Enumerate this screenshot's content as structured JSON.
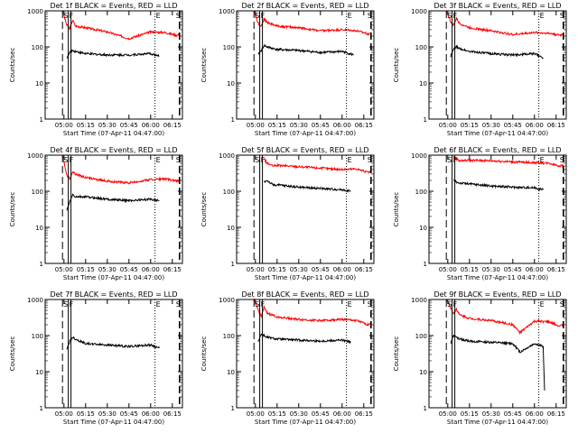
{
  "figure": {
    "panels": [
      {
        "title": "Det 1f BLACK = Events, RED = LLD"
      },
      {
        "title": "Det 2f BLACK = Events, RED = LLD"
      },
      {
        "title": "Det 3f BLACK = Events, RED = LLD"
      },
      {
        "title": "Det 4f BLACK = Events, RED = LLD"
      },
      {
        "title": "Det 5f BLACK = Events, RED = LLD"
      },
      {
        "title": "Det 6f BLACK = Events, RED = LLD"
      },
      {
        "title": "Det 7f BLACK = Events, RED = LLD"
      },
      {
        "title": "Det 8f BLACK = Events, RED = LLD"
      },
      {
        "title": "Det 9f BLACK = Events, RED = LLD"
      }
    ],
    "ylabel": "Counts/sec",
    "xlabel": "Start Time (07-Apr-11 04:47:00)",
    "xticks": [
      "05:00",
      "05:15",
      "05:30",
      "05:45",
      "06:00",
      "06:15"
    ],
    "yticks": [
      "1",
      "10",
      "100",
      "1000"
    ],
    "marker_labels": [
      "S",
      "F",
      "E",
      "S"
    ]
  },
  "chart_data": [
    {
      "type": "line",
      "title": "Det 1f BLACK = Events, RED = LLD",
      "xlabel": "Start Time (07-Apr-11 04:47:00)",
      "ylabel": "Counts/sec",
      "yscale": "log",
      "ylim": [
        1,
        1000
      ],
      "series": [
        {
          "name": "LLD",
          "color": "#ff0000",
          "x": [
            "04:59",
            "05:02",
            "05:04",
            "05:06",
            "05:08",
            "05:15",
            "05:30",
            "05:45",
            "06:00",
            "06:10",
            "06:18",
            "06:20"
          ],
          "values": [
            1000,
            400,
            320,
            550,
            380,
            340,
            260,
            170,
            260,
            250,
            210,
            220
          ]
        },
        {
          "name": "Events",
          "color": "#000000",
          "x": [
            "05:02",
            "05:04",
            "05:06",
            "05:08",
            "05:15",
            "05:30",
            "05:45",
            "06:00",
            "06:06"
          ],
          "values": [
            50,
            70,
            80,
            75,
            65,
            60,
            60,
            65,
            55
          ]
        }
      ]
    },
    {
      "type": "line",
      "title": "Det 2f BLACK = Events, RED = LLD",
      "xlabel": "Start Time (07-Apr-11 04:47:00)",
      "ylabel": "Counts/sec",
      "yscale": "log",
      "ylim": [
        1,
        1000
      ],
      "series": [
        {
          "name": "LLD",
          "color": "#ff0000",
          "x": [
            "04:59",
            "05:02",
            "05:04",
            "05:06",
            "05:08",
            "05:15",
            "05:30",
            "05:45",
            "06:00",
            "06:10",
            "06:18",
            "06:20"
          ],
          "values": [
            1000,
            450,
            380,
            600,
            480,
            380,
            340,
            280,
            300,
            280,
            230,
            240
          ]
        },
        {
          "name": "Events",
          "color": "#000000",
          "x": [
            "05:02",
            "05:04",
            "05:06",
            "05:08",
            "05:15",
            "05:30",
            "05:45",
            "06:00",
            "06:08"
          ],
          "values": [
            60,
            80,
            110,
            100,
            85,
            80,
            70,
            75,
            60
          ]
        }
      ]
    },
    {
      "type": "line",
      "title": "Det 3f BLACK = Events, RED = LLD",
      "xlabel": "Start Time (07-Apr-11 04:47:00)",
      "ylabel": "Counts/sec",
      "yscale": "log",
      "ylim": [
        1,
        1000
      ],
      "series": [
        {
          "name": "LLD",
          "color": "#ff0000",
          "x": [
            "04:59",
            "05:02",
            "05:04",
            "05:06",
            "05:08",
            "05:15",
            "05:30",
            "05:45",
            "06:00",
            "06:10",
            "06:18",
            "06:20"
          ],
          "values": [
            1000,
            500,
            400,
            620,
            450,
            340,
            280,
            220,
            250,
            240,
            210,
            230
          ]
        },
        {
          "name": "Events",
          "color": "#000000",
          "x": [
            "05:02",
            "05:04",
            "05:06",
            "05:08",
            "05:15",
            "05:30",
            "05:45",
            "06:00",
            "06:06"
          ],
          "values": [
            55,
            85,
            100,
            90,
            75,
            65,
            60,
            65,
            50
          ]
        }
      ]
    },
    {
      "type": "line",
      "title": "Det 4f BLACK = Events, RED = LLD",
      "xlabel": "Start Time (07-Apr-11 04:47:00)",
      "ylabel": "Counts/sec",
      "yscale": "log",
      "ylim": [
        1,
        1000
      ],
      "series": [
        {
          "name": "LLD",
          "color": "#ff0000",
          "x": [
            "04:59",
            "05:02",
            "05:04",
            "05:06",
            "05:08",
            "05:15",
            "05:30",
            "05:45",
            "06:00",
            "06:10",
            "06:18",
            "06:20"
          ],
          "values": [
            1000,
            280,
            220,
            350,
            300,
            240,
            190,
            170,
            210,
            220,
            190,
            200
          ]
        },
        {
          "name": "Events",
          "color": "#000000",
          "x": [
            "05:02",
            "05:04",
            "05:06",
            "05:08",
            "05:15",
            "05:30",
            "05:45",
            "06:00",
            "06:06"
          ],
          "values": [
            30,
            50,
            80,
            70,
            70,
            60,
            55,
            60,
            55
          ]
        }
      ]
    },
    {
      "type": "line",
      "title": "Det 5f BLACK = Events, RED = LLD",
      "xlabel": "Start Time (07-Apr-11 04:47:00)",
      "ylabel": "Counts/sec",
      "yscale": "log",
      "ylim": [
        1,
        1000
      ],
      "series": [
        {
          "name": "LLD",
          "color": "#ff0000",
          "x": [
            "05:06",
            "05:08",
            "05:12",
            "05:15",
            "05:30",
            "05:45",
            "06:00",
            "06:10",
            "06:18",
            "06:20"
          ],
          "values": [
            800,
            600,
            500,
            520,
            480,
            440,
            400,
            420,
            330,
            350
          ]
        },
        {
          "name": "Events",
          "color": "#000000",
          "x": [
            "05:06",
            "05:08",
            "05:12",
            "05:15",
            "05:30",
            "05:45",
            "06:00",
            "06:06"
          ],
          "values": [
            180,
            200,
            150,
            150,
            130,
            120,
            110,
            100
          ]
        }
      ]
    },
    {
      "type": "line",
      "title": "Det 6f BLACK = Events, RED = LLD",
      "xlabel": "Start Time (07-Apr-11 04:47:00)",
      "ylabel": "Counts/sec",
      "yscale": "log",
      "ylim": [
        1,
        1000
      ],
      "series": [
        {
          "name": "LLD",
          "color": "#ff0000",
          "x": [
            "05:04",
            "05:06",
            "05:08",
            "05:15",
            "05:30",
            "05:45",
            "06:00",
            "06:10",
            "06:18",
            "06:20"
          ],
          "values": [
            900,
            800,
            700,
            720,
            700,
            650,
            620,
            600,
            500,
            520
          ]
        },
        {
          "name": "Events",
          "color": "#000000",
          "x": [
            "05:04",
            "05:06",
            "05:08",
            "05:15",
            "05:30",
            "05:45",
            "06:00",
            "06:06"
          ],
          "values": [
            200,
            180,
            170,
            160,
            140,
            130,
            125,
            110
          ]
        }
      ]
    },
    {
      "type": "line",
      "title": "Det 7f BLACK = Events, RED = LLD",
      "xlabel": "Start Time (07-Apr-11 04:47:00)",
      "ylabel": "Counts/sec",
      "yscale": "log",
      "ylim": [
        1,
        1000
      ],
      "series": [
        {
          "name": "Events",
          "color": "#000000",
          "x": [
            "05:02",
            "05:04",
            "05:06",
            "05:08",
            "05:15",
            "05:30",
            "05:45",
            "06:00",
            "06:06"
          ],
          "values": [
            40,
            70,
            90,
            80,
            60,
            55,
            50,
            55,
            45
          ]
        }
      ]
    },
    {
      "type": "line",
      "title": "Det 8f BLACK = Events, RED = LLD",
      "xlabel": "Start Time (07-Apr-11 04:47:00)",
      "ylabel": "Counts/sec",
      "yscale": "log",
      "ylim": [
        1,
        1000
      ],
      "series": [
        {
          "name": "LLD",
          "color": "#ff0000",
          "x": [
            "04:59",
            "05:02",
            "05:04",
            "05:06",
            "05:08",
            "05:15",
            "05:30",
            "05:45",
            "06:00",
            "06:10",
            "06:18",
            "06:20"
          ],
          "values": [
            1000,
            500,
            350,
            600,
            420,
            330,
            280,
            260,
            280,
            260,
            200,
            230
          ]
        },
        {
          "name": "Events",
          "color": "#000000",
          "x": [
            "05:02",
            "05:04",
            "05:06",
            "05:08",
            "05:15",
            "05:30",
            "05:45",
            "06:00",
            "06:06"
          ],
          "values": [
            70,
            110,
            100,
            90,
            80,
            75,
            70,
            75,
            65
          ]
        }
      ]
    },
    {
      "type": "line",
      "title": "Det 9f BLACK = Events, RED = LLD",
      "xlabel": "Start Time (07-Apr-11 04:47:00)",
      "ylabel": "Counts/sec",
      "yscale": "log",
      "ylim": [
        1,
        1000
      ],
      "series": [
        {
          "name": "LLD",
          "color": "#ff0000",
          "x": [
            "04:59",
            "05:02",
            "05:04",
            "05:06",
            "05:08",
            "05:15",
            "05:30",
            "05:45",
            "05:50",
            "06:00",
            "06:10",
            "06:18",
            "06:20"
          ],
          "values": [
            1000,
            600,
            400,
            550,
            380,
            300,
            260,
            200,
            120,
            250,
            240,
            180,
            210
          ]
        },
        {
          "name": "Events",
          "color": "#000000",
          "x": [
            "05:02",
            "05:04",
            "05:06",
            "05:08",
            "05:15",
            "05:30",
            "05:45",
            "05:50",
            "06:00",
            "06:06",
            "06:07"
          ],
          "values": [
            60,
            100,
            90,
            80,
            70,
            65,
            60,
            35,
            60,
            50,
            3
          ]
        }
      ]
    }
  ]
}
